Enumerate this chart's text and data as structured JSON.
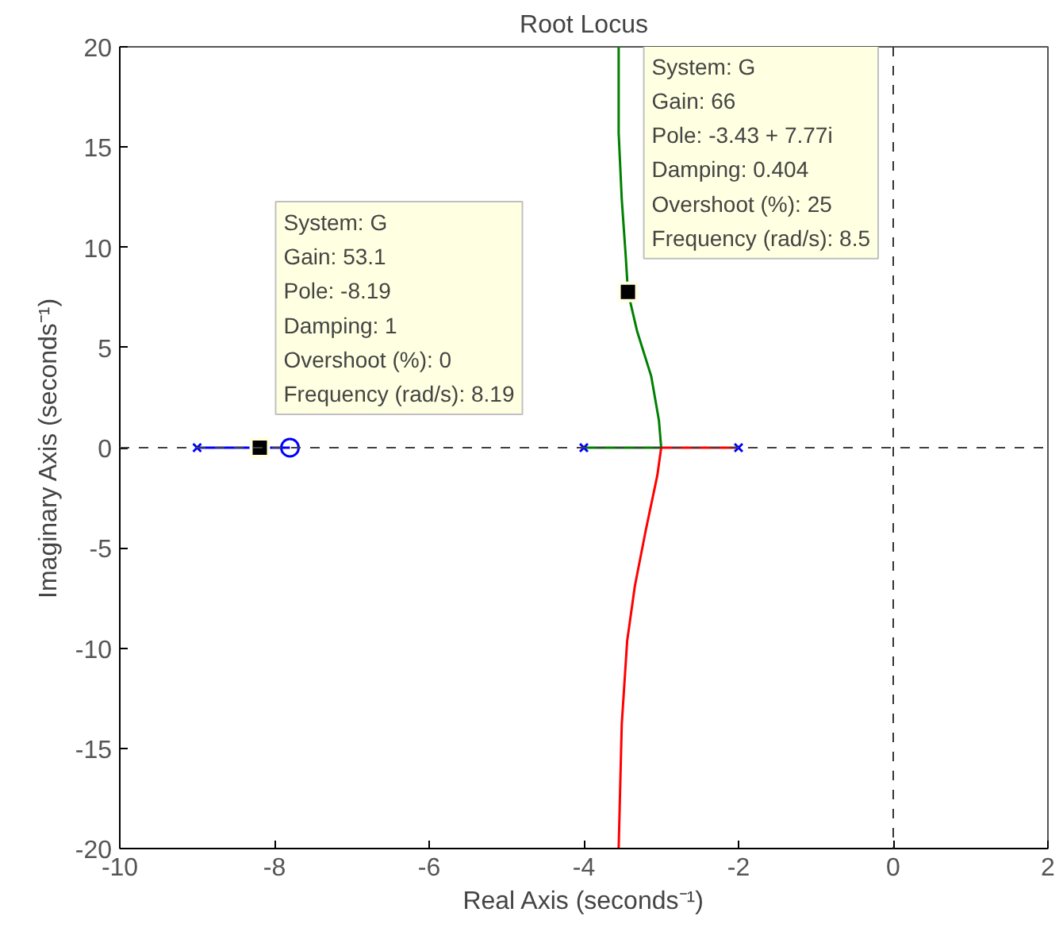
{
  "chart_data": {
    "type": "line",
    "title": "Root Locus",
    "xlabel": "Real Axis (seconds⁻¹)",
    "ylabel": "Imaginary Axis (seconds⁻¹)",
    "xlim": [
      -10,
      2
    ],
    "ylim": [
      -20,
      20
    ],
    "xticks": [
      -10,
      -8,
      -6,
      -4,
      -2,
      0,
      2
    ],
    "yticks": [
      -20,
      -15,
      -10,
      -5,
      0,
      5,
      10,
      15,
      20
    ],
    "grid": false,
    "series": [
      {
        "color": "#0000ff",
        "x": [
          -9,
          -7.8
        ],
        "values": [
          0,
          0
        ]
      },
      {
        "color": "#008000",
        "x": [
          -4,
          -3,
          -3.03,
          -3.13,
          -3.31,
          -3.43,
          -3.46,
          -3.51,
          -3.55,
          -3.55
        ],
        "values": [
          0,
          0,
          1.38,
          3.58,
          5.79,
          7.77,
          9.64,
          12.4,
          15.7,
          20
        ]
      },
      {
        "color": "#ff0000",
        "x": [
          -2,
          -3,
          -3.05,
          -3.2,
          -3.34,
          -3.44,
          -3.51,
          -3.55
        ],
        "values": [
          0,
          0,
          -1.38,
          -4.13,
          -6.89,
          -9.64,
          -13.8,
          -20
        ]
      },
      {
        "type": "scatter",
        "marker": "cross",
        "color": "#0000ff",
        "x": [
          -9,
          -4,
          -2
        ],
        "values": [
          0,
          0,
          0
        ]
      },
      {
        "type": "scatter",
        "marker": "circle",
        "color": "#0000ff",
        "x": [
          -7.8
        ],
        "values": [
          0
        ]
      },
      {
        "type": "scatter",
        "marker": "square",
        "color": "#000000",
        "x": [
          -8.19,
          -3.43
        ],
        "values": [
          0,
          7.77
        ]
      }
    ],
    "ref_lines": [
      {
        "axis": "y",
        "value": 0,
        "color": "#404040",
        "line_style": "dashed"
      },
      {
        "axis": "x",
        "value": 0,
        "color": "#333333",
        "line_style": "dashed"
      }
    ],
    "annotations": [
      {
        "text": "System: G\nGain: 53.1\nPole: -8.19\nDamping: 1\nOvershoot (%): 0\nFrequency (rad/s): 8.19",
        "x": -8.19,
        "y": 0
      },
      {
        "text": "System: G\nGain: 66\nPole: -3.43 + 7.77i\nDamping: 0.404\nOvershoot (%): 25\nFrequency (rad/s): 8.5",
        "x": -3.43,
        "y": 7.77
      }
    ]
  }
}
